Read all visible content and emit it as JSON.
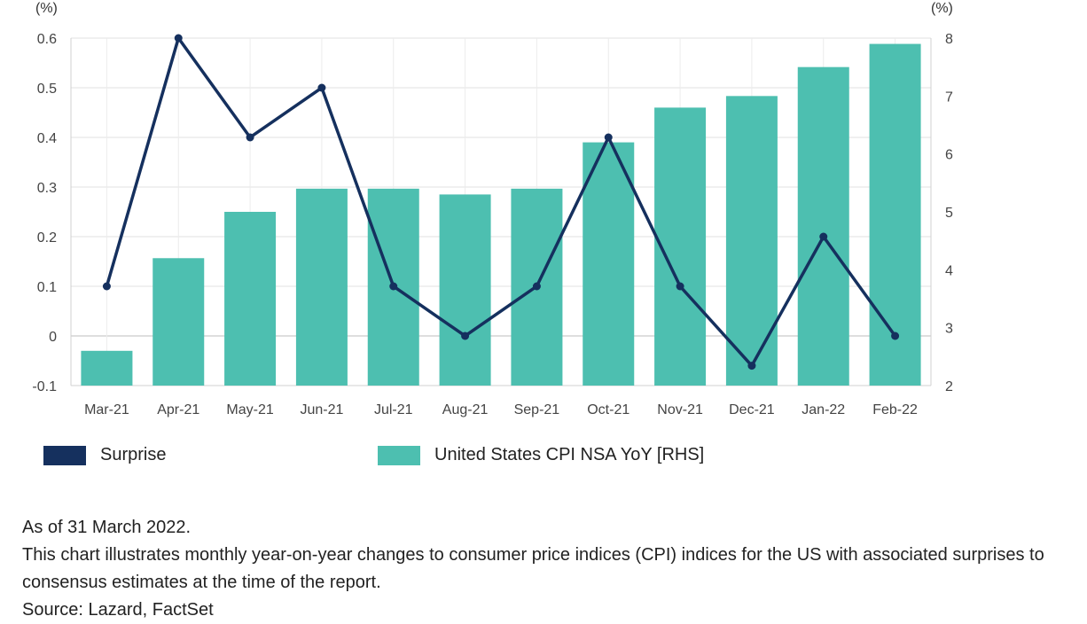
{
  "chart_data": {
    "type": "bar+line",
    "categories": [
      "Mar-21",
      "Apr-21",
      "May-21",
      "Jun-21",
      "Jul-21",
      "Aug-21",
      "Sep-21",
      "Oct-21",
      "Nov-21",
      "Dec-21",
      "Jan-22",
      "Feb-22"
    ],
    "series": [
      {
        "name": "Surprise",
        "type": "line",
        "axis": "left",
        "color": "#15305e",
        "values": [
          0.1,
          0.6,
          0.4,
          0.5,
          0.1,
          0.0,
          0.1,
          0.4,
          0.1,
          -0.06,
          0.2,
          0.0
        ]
      },
      {
        "name": "United States CPI NSA YoY [RHS]",
        "type": "bar",
        "axis": "right",
        "color": "#4dbfb0",
        "values": [
          2.6,
          4.2,
          5.0,
          5.4,
          5.4,
          5.3,
          5.4,
          6.2,
          6.8,
          7.0,
          7.5,
          7.9
        ]
      }
    ],
    "left_axis": {
      "unit": "(%)",
      "min": -0.1,
      "max": 0.6,
      "ticks": [
        -0.1,
        0,
        0.1,
        0.2,
        0.3,
        0.4,
        0.5,
        0.6
      ]
    },
    "right_axis": {
      "unit": "(%)",
      "min": 2,
      "max": 8,
      "ticks": [
        2,
        3,
        4,
        5,
        6,
        7,
        8
      ]
    },
    "grid": true,
    "legend_position": "bottom"
  },
  "notes": {
    "as_of": "As of 31 March 2022.",
    "description": "This chart illustrates monthly year-on-year changes to consumer price indices (CPI) indices for the US with associated surprises to consensus estimates at the time of the report.",
    "source": "Source: Lazard, FactSet"
  }
}
